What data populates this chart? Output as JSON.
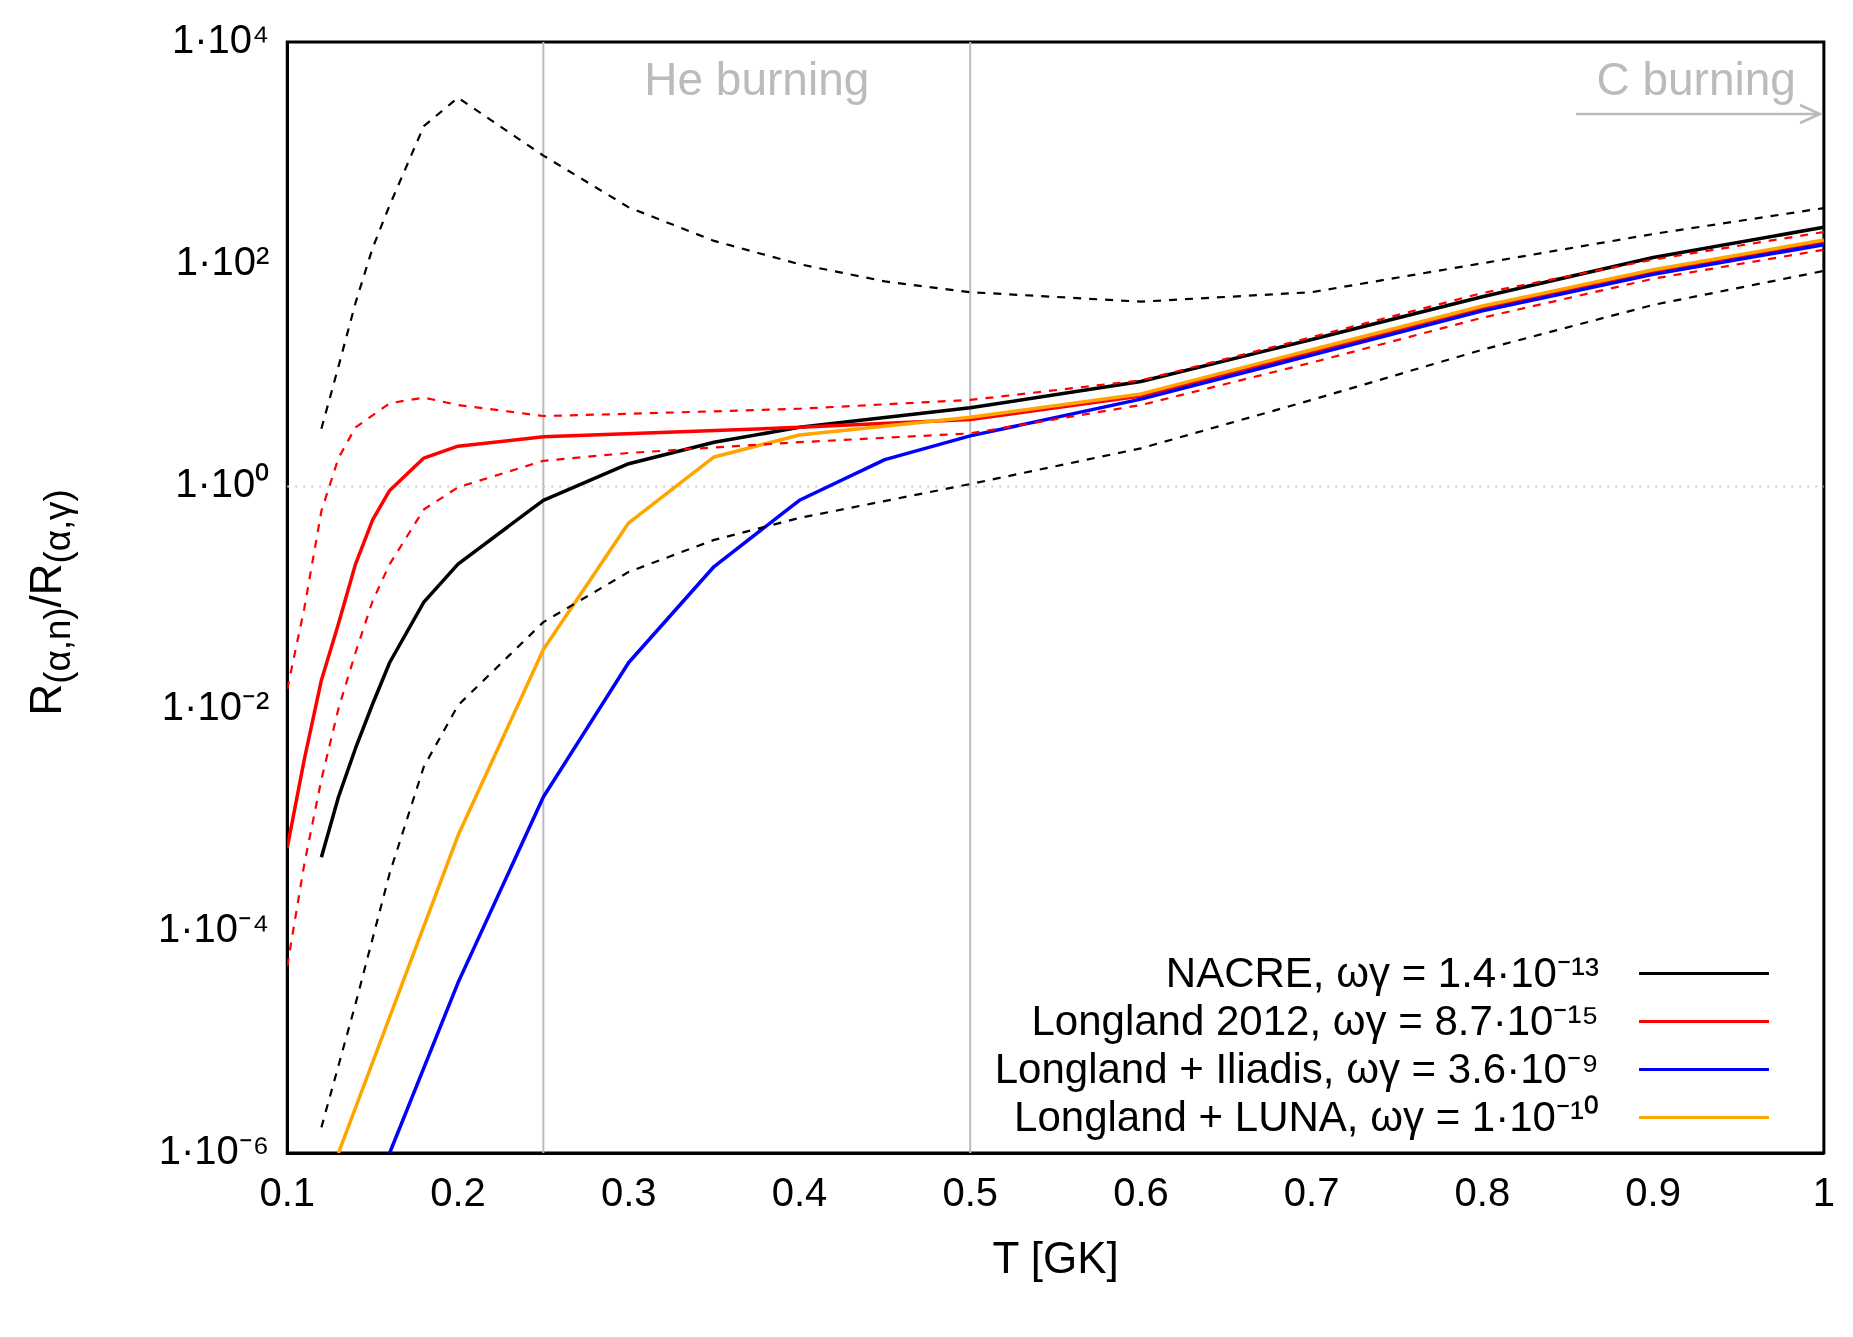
{
  "chart_data": {
    "type": "line",
    "xlabel": "T [GK]",
    "ylabel": "R$_{(α,n)}$/R$_{(α,γ)}$",
    "log": "y",
    "grid": false,
    "legend": "bottom right",
    "xlim": [
      0.1,
      1
    ],
    "xticks": [
      0.1,
      0.2,
      0.3,
      0.4,
      0.5,
      0.6,
      0.7,
      0.8,
      0.9,
      1
    ],
    "ylim": [
      1e-06,
      10000
    ],
    "yticks": [
      {
        "value": 1e-06,
        "label": "1·10⁻⁶"
      },
      {
        "value": 0.0001,
        "label": "1·10⁻⁴"
      },
      {
        "value": 0.01,
        "label": "1·10⁻²"
      },
      {
        "value": 1,
        "label": "1·10⁰"
      },
      {
        "value": 100,
        "label": "1·10²"
      },
      {
        "value": 10000,
        "label": "1·10⁴"
      }
    ],
    "ref_lines": [
      {
        "axis": "x",
        "value": 0.25,
        "color": "#bbbbbb",
        "line_style": "solid"
      },
      {
        "axis": "x",
        "value": 0.5,
        "color": "#bbbbbb",
        "line_style": "solid"
      },
      {
        "axis": "y",
        "value": 1,
        "color": "#cccccc",
        "line_style": "dotted"
      }
    ],
    "annotations": [
      "He burning",
      "C burning"
    ],
    "series": [
      {
        "name": "NACRE, ωγ = 1.4·10⁻¹³",
        "color": "#000000",
        "line_style": "solid",
        "x": [
          0.12,
          0.13,
          0.14,
          0.15,
          0.16,
          0.18,
          0.2,
          0.25,
          0.3,
          0.35,
          0.4,
          0.5,
          0.6,
          0.7,
          0.8,
          0.9,
          1.0
        ],
        "values": [
          0.00046,
          0.0016,
          0.0044,
          0.011,
          0.026,
          0.091,
          0.2,
          0.75,
          1.6,
          2.5,
          3.4,
          5.1,
          8.8,
          21,
          51,
          115,
          215
        ]
      },
      {
        "name": "Longland 2012, ωγ = 8.7·10⁻¹⁵",
        "color": "#ff0000",
        "line_style": "solid",
        "x": [
          0.1,
          0.11,
          0.12,
          0.13,
          0.14,
          0.15,
          0.16,
          0.18,
          0.2,
          0.25,
          0.4,
          0.5,
          0.6,
          0.7,
          0.8,
          0.9,
          1.0
        ],
        "values": [
          0.00056,
          0.0035,
          0.018,
          0.058,
          0.2,
          0.5,
          0.92,
          1.8,
          2.3,
          2.8,
          3.4,
          4.0,
          6.5,
          16,
          40,
          85,
          157
        ]
      },
      {
        "name": "Longland + Iliadis, ωγ = 3.6·10⁻⁹",
        "color": "#0000ff",
        "line_style": "solid",
        "x": [
          0.16,
          0.2,
          0.25,
          0.3,
          0.35,
          0.4,
          0.45,
          0.5,
          0.6,
          0.7,
          0.8,
          0.9,
          1.0
        ],
        "values": [
          1e-06,
          3.4e-05,
          0.0016,
          0.026,
          0.19,
          0.75,
          1.74,
          2.85,
          6.1,
          15.2,
          38,
          81,
          150
        ]
      },
      {
        "name": "Longland + LUNA, ωγ = 1·10⁻¹⁰",
        "color": "#ffa500",
        "line_style": "solid",
        "x": [
          0.13,
          0.2,
          0.25,
          0.3,
          0.35,
          0.4,
          0.5,
          0.6,
          0.7,
          0.8,
          0.9,
          1.0
        ],
        "values": [
          1e-06,
          0.00072,
          0.034,
          0.47,
          1.84,
          2.9,
          4.2,
          6.8,
          17,
          42,
          89,
          165
        ]
      },
      {
        "color": "#000000",
        "line_style": "dashed",
        "x": [
          0.12,
          0.13,
          0.14,
          0.15,
          0.16,
          0.18,
          0.2,
          0.25,
          0.3,
          0.35,
          0.4,
          0.45,
          0.5,
          0.6,
          0.7,
          0.8,
          0.9,
          1.0
        ],
        "values": [
          3.3,
          12,
          45,
          140,
          340,
          1750,
          3150,
          950,
          325,
          162,
          100,
          70,
          56,
          46,
          56,
          102,
          187,
          320
        ]
      },
      {
        "color": "#000000",
        "line_style": "dashed",
        "x": [
          0.12,
          0.14,
          0.16,
          0.18,
          0.2,
          0.25,
          0.3,
          0.35,
          0.4,
          0.5,
          0.6,
          0.7,
          0.8,
          0.9,
          1.0
        ],
        "values": [
          1.7e-06,
          2.2e-05,
          0.00033,
          0.003,
          0.0107,
          0.06,
          0.17,
          0.33,
          0.52,
          1.05,
          2.2,
          6,
          17,
          43,
          87
        ]
      },
      {
        "color": "#ff0000",
        "line_style": "dashed",
        "x": [
          0.1,
          0.11,
          0.12,
          0.13,
          0.14,
          0.16,
          0.18,
          0.2,
          0.25,
          0.3,
          0.4,
          0.5,
          0.6,
          0.7,
          0.8,
          0.9,
          1.0
        ],
        "values": [
          0.015,
          0.08,
          0.6,
          1.8,
          3.4,
          5.6,
          6.3,
          5.4,
          4.3,
          4.5,
          5,
          6,
          9,
          22,
          55,
          110,
          195
        ]
      },
      {
        "color": "#ff0000",
        "line_style": "dashed",
        "x": [
          0.1,
          0.11,
          0.12,
          0.13,
          0.14,
          0.15,
          0.16,
          0.18,
          0.2,
          0.25,
          0.3,
          0.4,
          0.5,
          0.6,
          0.7,
          0.8,
          0.9,
          1.0
        ],
        "values": [
          4.8e-05,
          0.0004,
          0.0023,
          0.01,
          0.032,
          0.093,
          0.2,
          0.62,
          0.98,
          1.7,
          2.0,
          2.5,
          3.0,
          5.4,
          13,
          33,
          74,
          135
        ]
      }
    ]
  }
}
